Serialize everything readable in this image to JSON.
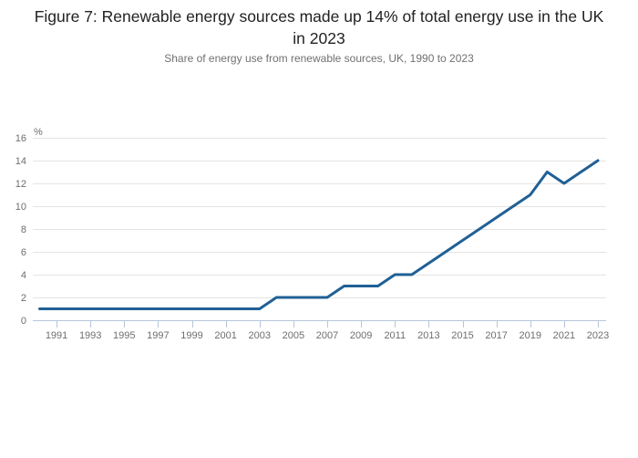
{
  "chart_data": {
    "type": "line",
    "title": "Figure 7: Renewable energy sources made up 14% of total energy use in the UK in 2023",
    "subtitle": "Share of energy use from renewable sources, UK, 1990 to 2023",
    "unit_label": "%",
    "x": [
      1990,
      1991,
      1992,
      1993,
      1994,
      1995,
      1996,
      1997,
      1998,
      1999,
      2000,
      2001,
      2002,
      2003,
      2004,
      2005,
      2006,
      2007,
      2008,
      2009,
      2010,
      2011,
      2012,
      2013,
      2014,
      2015,
      2016,
      2017,
      2018,
      2019,
      2020,
      2021,
      2022,
      2023
    ],
    "values": [
      1,
      1,
      1,
      1,
      1,
      1,
      1,
      1,
      1,
      1,
      1,
      1,
      1,
      1,
      2,
      2,
      2,
      2,
      3,
      3,
      3,
      4,
      4,
      5,
      6,
      7,
      8,
      9,
      10,
      11,
      13,
      12,
      13,
      14
    ],
    "xlim": [
      1990,
      2023
    ],
    "ylim": [
      0,
      16
    ],
    "y_ticks": [
      0,
      2,
      4,
      6,
      8,
      10,
      12,
      14,
      16
    ],
    "x_ticks": [
      1991,
      1993,
      1995,
      1997,
      1999,
      2001,
      2003,
      2005,
      2007,
      2009,
      2011,
      2013,
      2015,
      2017,
      2019,
      2021,
      2023
    ],
    "grid": true,
    "legend": "none",
    "line_color": "#206095",
    "grid_color": "#e4e4e4",
    "axis_color": "#b6c6d9",
    "title_color": "#222222",
    "subtitle_color": "#707071",
    "tick_label_color": "#6e6e6e"
  }
}
